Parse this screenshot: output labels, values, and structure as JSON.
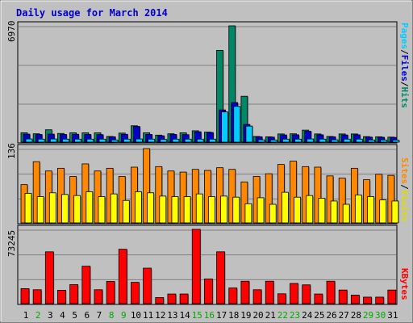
{
  "chart_data": {
    "type": "bar",
    "title": "Daily usage for March 2014",
    "categories": [
      "1",
      "2",
      "3",
      "4",
      "5",
      "6",
      "7",
      "8",
      "9",
      "10",
      "11",
      "12",
      "13",
      "14",
      "15",
      "16",
      "17",
      "18",
      "19",
      "20",
      "21",
      "22",
      "23",
      "24",
      "25",
      "26",
      "27",
      "28",
      "29",
      "30",
      "31"
    ],
    "weekend_days": [
      "2",
      "8",
      "9",
      "15",
      "16",
      "22",
      "23",
      "29",
      "30"
    ],
    "panels": [
      {
        "name": "hits-files-pages",
        "ymax_label": "6970",
        "ymax": 6970,
        "legend": [
          {
            "text": "Pages",
            "color": "#00ccff"
          },
          {
            "text": "/",
            "color": "#000000"
          },
          {
            "text": "Files",
            "color": "#0000cc"
          },
          {
            "text": "/",
            "color": "#000000"
          },
          {
            "text": "Hits",
            "color": "#008866"
          }
        ],
        "series": [
          {
            "name": "Hits",
            "color": "#008866",
            "values": [
              560,
              500,
              740,
              520,
              560,
              560,
              560,
              340,
              540,
              980,
              560,
              420,
              500,
              560,
              680,
              600,
              5500,
              6970,
              2750,
              340,
              320,
              490,
              500,
              720,
              490,
              340,
              490,
              490,
              330,
              320,
              300
            ]
          },
          {
            "name": "Files",
            "color": "#0000cc",
            "values": [
              480,
              460,
              480,
              460,
              470,
              460,
              450,
              320,
              470,
              940,
              460,
              380,
              460,
              450,
              620,
              580,
              1930,
              2370,
              1060,
              320,
              300,
              430,
              440,
              650,
              440,
              320,
              430,
              440,
              300,
              290,
              280
            ]
          },
          {
            "name": "Pages",
            "color": "#00ccff",
            "values": [
              190,
              180,
              190,
              180,
              180,
              180,
              180,
              130,
              180,
              190,
              180,
              160,
              180,
              180,
              180,
              180,
              1810,
              2140,
              960,
              140,
              130,
              180,
              180,
              190,
              180,
              140,
              180,
              180,
              130,
              130,
              120
            ]
          }
        ]
      },
      {
        "name": "visits-sites",
        "ymax_label": "136",
        "ymax": 136,
        "legend": [
          {
            "text": "Sites",
            "color": "#ff8800"
          },
          {
            "text": "/",
            "color": "#000000"
          },
          {
            "text": "Visits",
            "color": "#dddd00"
          }
        ],
        "series": [
          {
            "name": "Visits",
            "color": "#ff8800",
            "values": [
              70,
              112,
              95,
              100,
              85,
              108,
              95,
              100,
              85,
              102,
              136,
              103,
              95,
              93,
              98,
              96,
              101,
              98,
              75,
              85,
              90,
              107,
              113,
              103,
              102,
              86,
              82,
              100,
              79,
              89,
              87
            ]
          },
          {
            "name": "Sites",
            "color": "#ffff00",
            "values": [
              54,
              48,
              55,
              52,
              50,
              57,
              48,
              53,
              41,
              57,
              55,
              49,
              48,
              48,
              53,
              48,
              49,
              47,
              35,
              46,
              34,
              56,
              47,
              50,
              45,
              40,
              34,
              51,
              48,
              42,
              40
            ]
          }
        ]
      },
      {
        "name": "kbytes",
        "ymax_label": "73245",
        "ymax": 73245,
        "legend": [
          {
            "text": "KBytes",
            "color": "#ff0000"
          }
        ],
        "series": [
          {
            "name": "KBytes",
            "color": "#ff0000",
            "values": [
              14800,
              13700,
              51100,
              13200,
              18800,
              36900,
              13700,
              21900,
              53600,
              21000,
              35000,
              6000,
              9500,
              9500,
              73245,
              24300,
              51100,
              15400,
              22100,
              13700,
              22100,
              9700,
              19900,
              18500,
              9500,
              22100,
              13400,
              8400,
              6400,
              6400,
              13400
            ]
          }
        ]
      }
    ]
  }
}
